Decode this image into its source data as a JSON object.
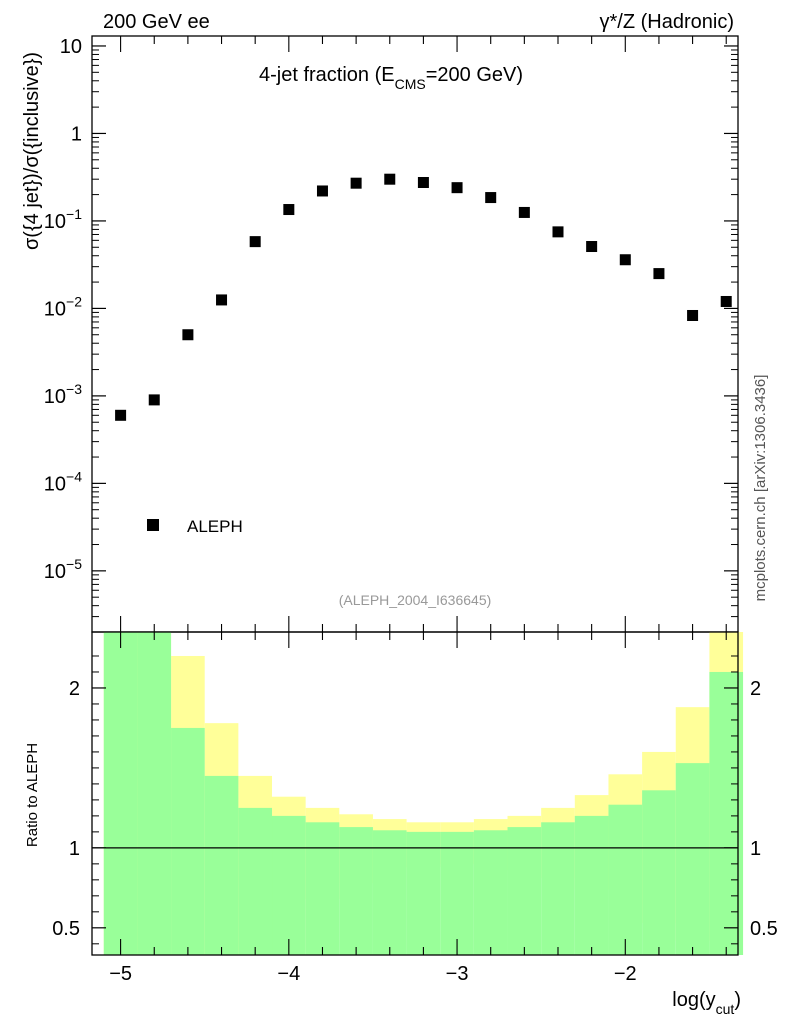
{
  "header": {
    "left": "200 GeV ee",
    "right": "γ*/Z (Hadronic)"
  },
  "side_credit": "mcplots.cern.ch [arXiv:1306.3436]",
  "analysis_id": "(ALEPH_2004_I636645)",
  "colors": {
    "green_band": "#99ff99",
    "yellow_band": "#ffff99",
    "marker": "#000000"
  },
  "chart_data": [
    {
      "type": "scatter",
      "title_main": "4-jet fraction (E",
      "title_sub": "CMS",
      "title_tail": "=200 GeV)",
      "ylabel": "σ({4 jet})/σ({inclusive})",
      "yscale": "log",
      "ylim": [
        2e-06,
        13
      ],
      "xlim": [
        -5.17,
        -1.33
      ],
      "ytick_labels": [
        {
          "value": 10,
          "base": "10",
          "exp": ""
        },
        {
          "value": 1,
          "base": "1",
          "exp": ""
        },
        {
          "value": 0.1,
          "base": "10",
          "exp": "−1"
        },
        {
          "value": 0.01,
          "base": "10",
          "exp": "−2"
        },
        {
          "value": 0.001,
          "base": "10",
          "exp": "−3"
        },
        {
          "value": 0.0001,
          "base": "10",
          "exp": "−4"
        },
        {
          "value": 1e-05,
          "base": "10",
          "exp": "−5"
        }
      ],
      "legend": {
        "label": "ALEPH",
        "position": "lower-left"
      },
      "series": [
        {
          "name": "ALEPH",
          "x": [
            -5.0,
            -4.8,
            -4.6,
            -4.4,
            -4.2,
            -4.0,
            -3.8,
            -3.6,
            -3.4,
            -3.2,
            -3.0,
            -2.8,
            -2.6,
            -2.4,
            -2.2,
            -2.0,
            -1.8,
            -1.6,
            -1.4
          ],
          "y": [
            0.0006,
            0.0009,
            0.005,
            0.0125,
            0.058,
            0.135,
            0.22,
            0.27,
            0.3,
            0.275,
            0.24,
            0.185,
            0.125,
            0.075,
            0.051,
            0.036,
            0.025,
            0.0083,
            0.012
          ]
        }
      ]
    },
    {
      "type": "area",
      "ylabel": "Ratio to ALEPH",
      "xlabel_main": "log(y",
      "xlabel_sub": "cut",
      "xlabel_tail": ")",
      "ylim": [
        0.33,
        2.35
      ],
      "xlim": [
        -5.17,
        -1.33
      ],
      "reference_line": 1,
      "xtick_labels": [
        {
          "value": -5,
          "label": "−5"
        },
        {
          "value": -4,
          "label": "−4"
        },
        {
          "value": -3,
          "label": "−3"
        },
        {
          "value": -2,
          "label": "−2"
        }
      ],
      "ytick_labels": [
        {
          "value": 2,
          "label": "2"
        },
        {
          "value": 1,
          "label": "1"
        },
        {
          "value": 0.5,
          "label": "0.5"
        }
      ],
      "bin_edges": [
        -5.1,
        -4.9,
        -4.7,
        -4.5,
        -4.3,
        -4.1,
        -3.9,
        -3.7,
        -3.5,
        -3.3,
        -3.1,
        -2.9,
        -2.7,
        -2.5,
        -2.3,
        -2.1,
        -1.9,
        -1.7,
        -1.5,
        -1.3
      ],
      "bands": [
        {
          "name": "yellow",
          "upper": [
            2.35,
            2.35,
            2.2,
            1.78,
            1.45,
            1.32,
            1.25,
            1.21,
            1.18,
            1.16,
            1.16,
            1.18,
            1.2,
            1.25,
            1.33,
            1.46,
            1.6,
            1.88,
            2.35
          ],
          "lower": [
            0.33,
            0.33,
            0.33,
            0.33,
            0.33,
            0.33,
            0.68,
            0.78,
            0.84,
            0.88,
            0.9,
            0.89,
            0.86,
            0.81,
            0.74,
            0.65,
            0.53,
            0.42,
            0.33
          ]
        },
        {
          "name": "green",
          "upper": [
            2.35,
            2.35,
            1.75,
            1.45,
            1.25,
            1.2,
            1.16,
            1.13,
            1.11,
            1.1,
            1.1,
            1.11,
            1.13,
            1.16,
            1.2,
            1.27,
            1.36,
            1.53,
            2.1
          ],
          "lower": [
            0.33,
            0.33,
            0.33,
            0.33,
            0.33,
            0.33,
            0.33,
            0.33,
            0.33,
            0.33,
            0.33,
            0.33,
            0.33,
            0.33,
            0.33,
            0.33,
            0.33,
            0.33,
            0.33
          ]
        }
      ]
    }
  ]
}
